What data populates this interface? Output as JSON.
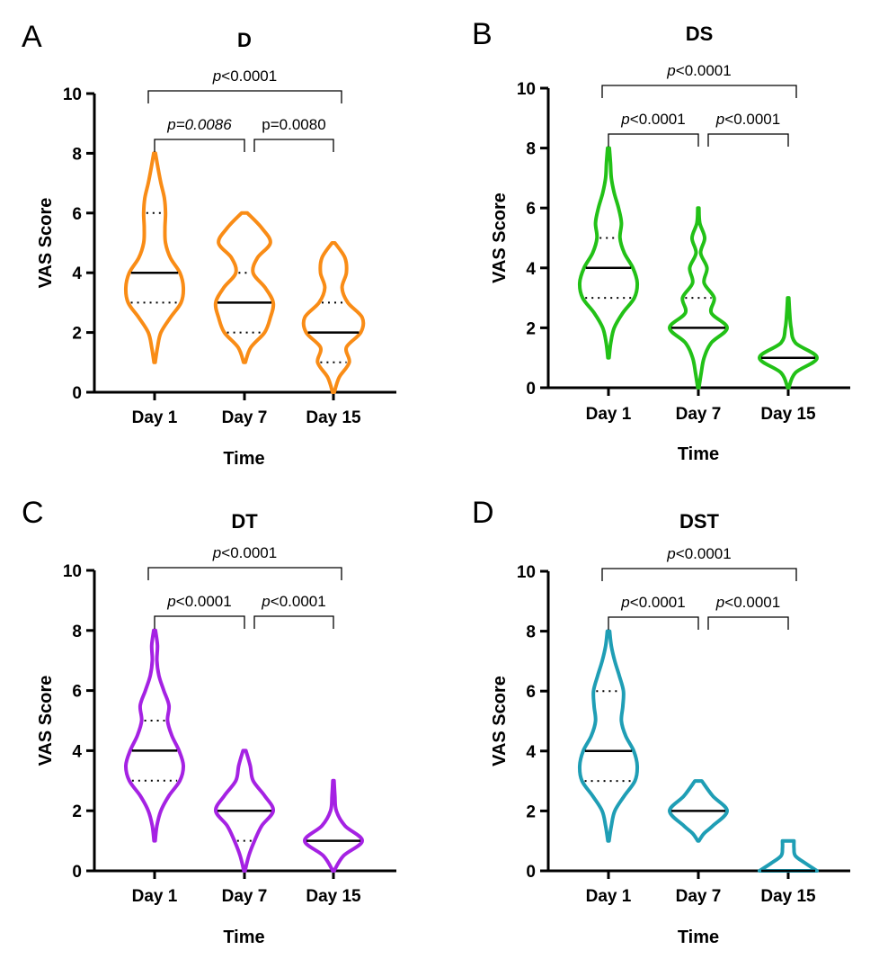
{
  "chart_data": [
    {
      "panel": "A",
      "type": "violin",
      "title": "D",
      "color": "#F98C16",
      "xlabel": "Time",
      "ylabel": "VAS Score",
      "ylim": [
        0,
        10
      ],
      "yticks": [
        "0",
        "2",
        "4",
        "6",
        "8",
        "10"
      ],
      "categories": [
        "Day 1",
        "Day 7",
        "Day 15"
      ],
      "violins": [
        {
          "min": 1,
          "max": 8,
          "median": 4,
          "q1": 3,
          "q3": 6,
          "profile": [
            [
              1,
              0.02
            ],
            [
              1.5,
              0.1
            ],
            [
              2,
              0.22
            ],
            [
              2.5,
              0.55
            ],
            [
              3,
              0.92
            ],
            [
              3.5,
              1
            ],
            [
              4,
              0.88
            ],
            [
              4.5,
              0.55
            ],
            [
              5,
              0.38
            ],
            [
              5.5,
              0.36
            ],
            [
              6,
              0.38
            ],
            [
              6.5,
              0.34
            ],
            [
              7,
              0.22
            ],
            [
              7.5,
              0.12
            ],
            [
              8,
              0.03
            ]
          ]
        },
        {
          "min": 1,
          "max": 6,
          "median": 3,
          "q1": 2,
          "q3": 4,
          "profile": [
            [
              1,
              0.03
            ],
            [
              1.5,
              0.22
            ],
            [
              2,
              0.7
            ],
            [
              2.5,
              0.9
            ],
            [
              3,
              1
            ],
            [
              3.5,
              0.72
            ],
            [
              4,
              0.3
            ],
            [
              4.5,
              0.45
            ],
            [
              5,
              0.9
            ],
            [
              5.5,
              0.6
            ],
            [
              6,
              0.1
            ]
          ]
        },
        {
          "min": 0,
          "max": 5,
          "median": 2,
          "q1": 1,
          "q3": 3,
          "profile": [
            [
              0,
              0.03
            ],
            [
              0.5,
              0.2
            ],
            [
              1,
              0.55
            ],
            [
              1.5,
              0.45
            ],
            [
              2,
              0.95
            ],
            [
              2.5,
              1
            ],
            [
              3,
              0.5
            ],
            [
              3.5,
              0.3
            ],
            [
              4,
              0.45
            ],
            [
              4.5,
              0.4
            ],
            [
              5,
              0.05
            ]
          ]
        }
      ],
      "comparisons": [
        {
          "from": 0,
          "to": 2,
          "label": "p<0.0001",
          "italic": "p",
          "rest": "<0.0001",
          "level": 2
        },
        {
          "from": 0,
          "to": 1,
          "label": "p=0.0086",
          "italic": "p=0.0086",
          "rest": "",
          "level": 1
        },
        {
          "from": 1,
          "to": 2,
          "label": "p=0.0080",
          "italic": "",
          "rest": "p=0.0080",
          "level": 1
        }
      ]
    },
    {
      "panel": "B",
      "type": "violin",
      "title": "DS",
      "color": "#22C117",
      "xlabel": "Time",
      "ylabel": "VAS Score",
      "ylim": [
        0,
        10
      ],
      "yticks": [
        "0",
        "2",
        "4",
        "6",
        "8",
        "10"
      ],
      "categories": [
        "Day 1",
        "Day 7",
        "Day 15"
      ],
      "violins": [
        {
          "min": 1,
          "max": 8,
          "median": 4,
          "q1": 3,
          "q3": 5,
          "profile": [
            [
              1,
              0.02
            ],
            [
              1.5,
              0.08
            ],
            [
              2,
              0.2
            ],
            [
              2.5,
              0.5
            ],
            [
              3,
              0.9
            ],
            [
              3.5,
              1
            ],
            [
              4,
              0.85
            ],
            [
              4.5,
              0.55
            ],
            [
              5,
              0.4
            ],
            [
              5.5,
              0.45
            ],
            [
              6,
              0.35
            ],
            [
              6.5,
              0.2
            ],
            [
              7,
              0.1
            ],
            [
              7.5,
              0.07
            ],
            [
              8,
              0.03
            ]
          ]
        },
        {
          "min": 0,
          "max": 6,
          "median": 2,
          "q1": 2,
          "q3": 3,
          "profile": [
            [
              0,
              0.02
            ],
            [
              0.5,
              0.1
            ],
            [
              1,
              0.2
            ],
            [
              1.5,
              0.45
            ],
            [
              2,
              1
            ],
            [
              2.5,
              0.45
            ],
            [
              3,
              0.55
            ],
            [
              3.5,
              0.2
            ],
            [
              4,
              0.3
            ],
            [
              4.5,
              0.08
            ],
            [
              5,
              0.22
            ],
            [
              5.5,
              0.05
            ],
            [
              6,
              0.02
            ]
          ]
        },
        {
          "min": 0,
          "max": 3,
          "median": 1,
          "q1": 1,
          "q3": 1,
          "profile": [
            [
              0,
              0.02
            ],
            [
              0.5,
              0.25
            ],
            [
              1,
              1
            ],
            [
              1.5,
              0.25
            ],
            [
              2,
              0.1
            ],
            [
              2.5,
              0.05
            ],
            [
              3,
              0.02
            ]
          ]
        }
      ],
      "comparisons": [
        {
          "from": 0,
          "to": 2,
          "label": "p<0.0001",
          "italic": "p",
          "rest": "<0.0001",
          "level": 2
        },
        {
          "from": 0,
          "to": 1,
          "label": "p<0.0001",
          "italic": "p",
          "rest": "<0.0001",
          "level": 1
        },
        {
          "from": 1,
          "to": 2,
          "label": "p<0.0001",
          "italic": "p",
          "rest": "<0.0001",
          "level": 1
        }
      ]
    },
    {
      "panel": "C",
      "type": "violin",
      "title": "DT",
      "color": "#A522E3",
      "xlabel": "Time",
      "ylabel": "VAS Score",
      "ylim": [
        0,
        10
      ],
      "yticks": [
        "0",
        "2",
        "4",
        "6",
        "8",
        "10"
      ],
      "categories": [
        "Day 1",
        "Day 7",
        "Day 15"
      ],
      "violins": [
        {
          "min": 1,
          "max": 8,
          "median": 4,
          "q1": 3,
          "q3": 5,
          "profile": [
            [
              1,
              0.02
            ],
            [
              1.5,
              0.08
            ],
            [
              2,
              0.22
            ],
            [
              2.5,
              0.5
            ],
            [
              3,
              0.88
            ],
            [
              3.5,
              1
            ],
            [
              4,
              0.85
            ],
            [
              4.5,
              0.6
            ],
            [
              5,
              0.45
            ],
            [
              5.5,
              0.5
            ],
            [
              6,
              0.32
            ],
            [
              6.5,
              0.15
            ],
            [
              7,
              0.08
            ],
            [
              7.5,
              0.1
            ],
            [
              8,
              0.03
            ]
          ]
        },
        {
          "min": 0,
          "max": 4,
          "median": 2,
          "q1": 1,
          "q3": 2,
          "profile": [
            [
              0,
              0.02
            ],
            [
              0.5,
              0.15
            ],
            [
              1,
              0.35
            ],
            [
              1.5,
              0.6
            ],
            [
              2,
              1
            ],
            [
              2.5,
              0.7
            ],
            [
              3,
              0.3
            ],
            [
              3.5,
              0.2
            ],
            [
              4,
              0.05
            ]
          ]
        },
        {
          "min": 0,
          "max": 3,
          "median": 1,
          "q1": 1,
          "q3": 1,
          "profile": [
            [
              0,
              0.02
            ],
            [
              0.5,
              0.35
            ],
            [
              1,
              1
            ],
            [
              1.5,
              0.4
            ],
            [
              2,
              0.1
            ],
            [
              2.5,
              0.05
            ],
            [
              3,
              0.02
            ]
          ]
        }
      ],
      "comparisons": [
        {
          "from": 0,
          "to": 2,
          "label": "p<0.0001",
          "italic": "p",
          "rest": "<0.0001",
          "level": 2
        },
        {
          "from": 0,
          "to": 1,
          "label": "p<0.0001",
          "italic": "p",
          "rest": "<0.0001",
          "level": 1
        },
        {
          "from": 1,
          "to": 2,
          "label": "p<0.0001",
          "italic": "p",
          "rest": "<0.0001",
          "level": 1
        }
      ]
    },
    {
      "panel": "D",
      "type": "violin",
      "title": "DST",
      "color": "#1F9EB5",
      "xlabel": "Time",
      "ylabel": "VAS Score",
      "ylim": [
        0,
        10
      ],
      "yticks": [
        "0",
        "2",
        "4",
        "6",
        "8",
        "10"
      ],
      "categories": [
        "Day 1",
        "Day 7",
        "Day 15"
      ],
      "violins": [
        {
          "min": 1,
          "max": 8,
          "median": 4,
          "q1": 3,
          "q3": 6,
          "profile": [
            [
              1,
              0.02
            ],
            [
              1.5,
              0.1
            ],
            [
              2,
              0.22
            ],
            [
              2.5,
              0.55
            ],
            [
              3,
              0.92
            ],
            [
              3.5,
              1
            ],
            [
              4,
              0.88
            ],
            [
              4.5,
              0.6
            ],
            [
              5,
              0.45
            ],
            [
              5.5,
              0.5
            ],
            [
              6,
              0.52
            ],
            [
              6.5,
              0.38
            ],
            [
              7,
              0.22
            ],
            [
              7.5,
              0.1
            ],
            [
              8,
              0.04
            ]
          ]
        },
        {
          "min": 1,
          "max": 3,
          "median": 2,
          "q1": 2,
          "q3": 2,
          "profile": [
            [
              1,
              0.02
            ],
            [
              1.25,
              0.2
            ],
            [
              1.5,
              0.5
            ],
            [
              2,
              1
            ],
            [
              2.5,
              0.5
            ],
            [
              3,
              0.12
            ]
          ]
        },
        {
          "min": 0,
          "max": 1,
          "median": 0,
          "q1": 0,
          "q3": 0,
          "profile": [
            [
              0,
              1
            ],
            [
              0.25,
              0.6
            ],
            [
              0.5,
              0.25
            ],
            [
              0.75,
              0.2
            ],
            [
              1,
              0.2
            ]
          ]
        }
      ],
      "comparisons": [
        {
          "from": 0,
          "to": 2,
          "label": "p<0.0001",
          "italic": "p",
          "rest": "<0.0001",
          "level": 2
        },
        {
          "from": 0,
          "to": 1,
          "label": "p<0.0001",
          "italic": "p",
          "rest": "<0.0001",
          "level": 1
        },
        {
          "from": 1,
          "to": 2,
          "label": "p<0.0001",
          "italic": "p",
          "rest": "<0.0001",
          "level": 1
        }
      ]
    }
  ]
}
